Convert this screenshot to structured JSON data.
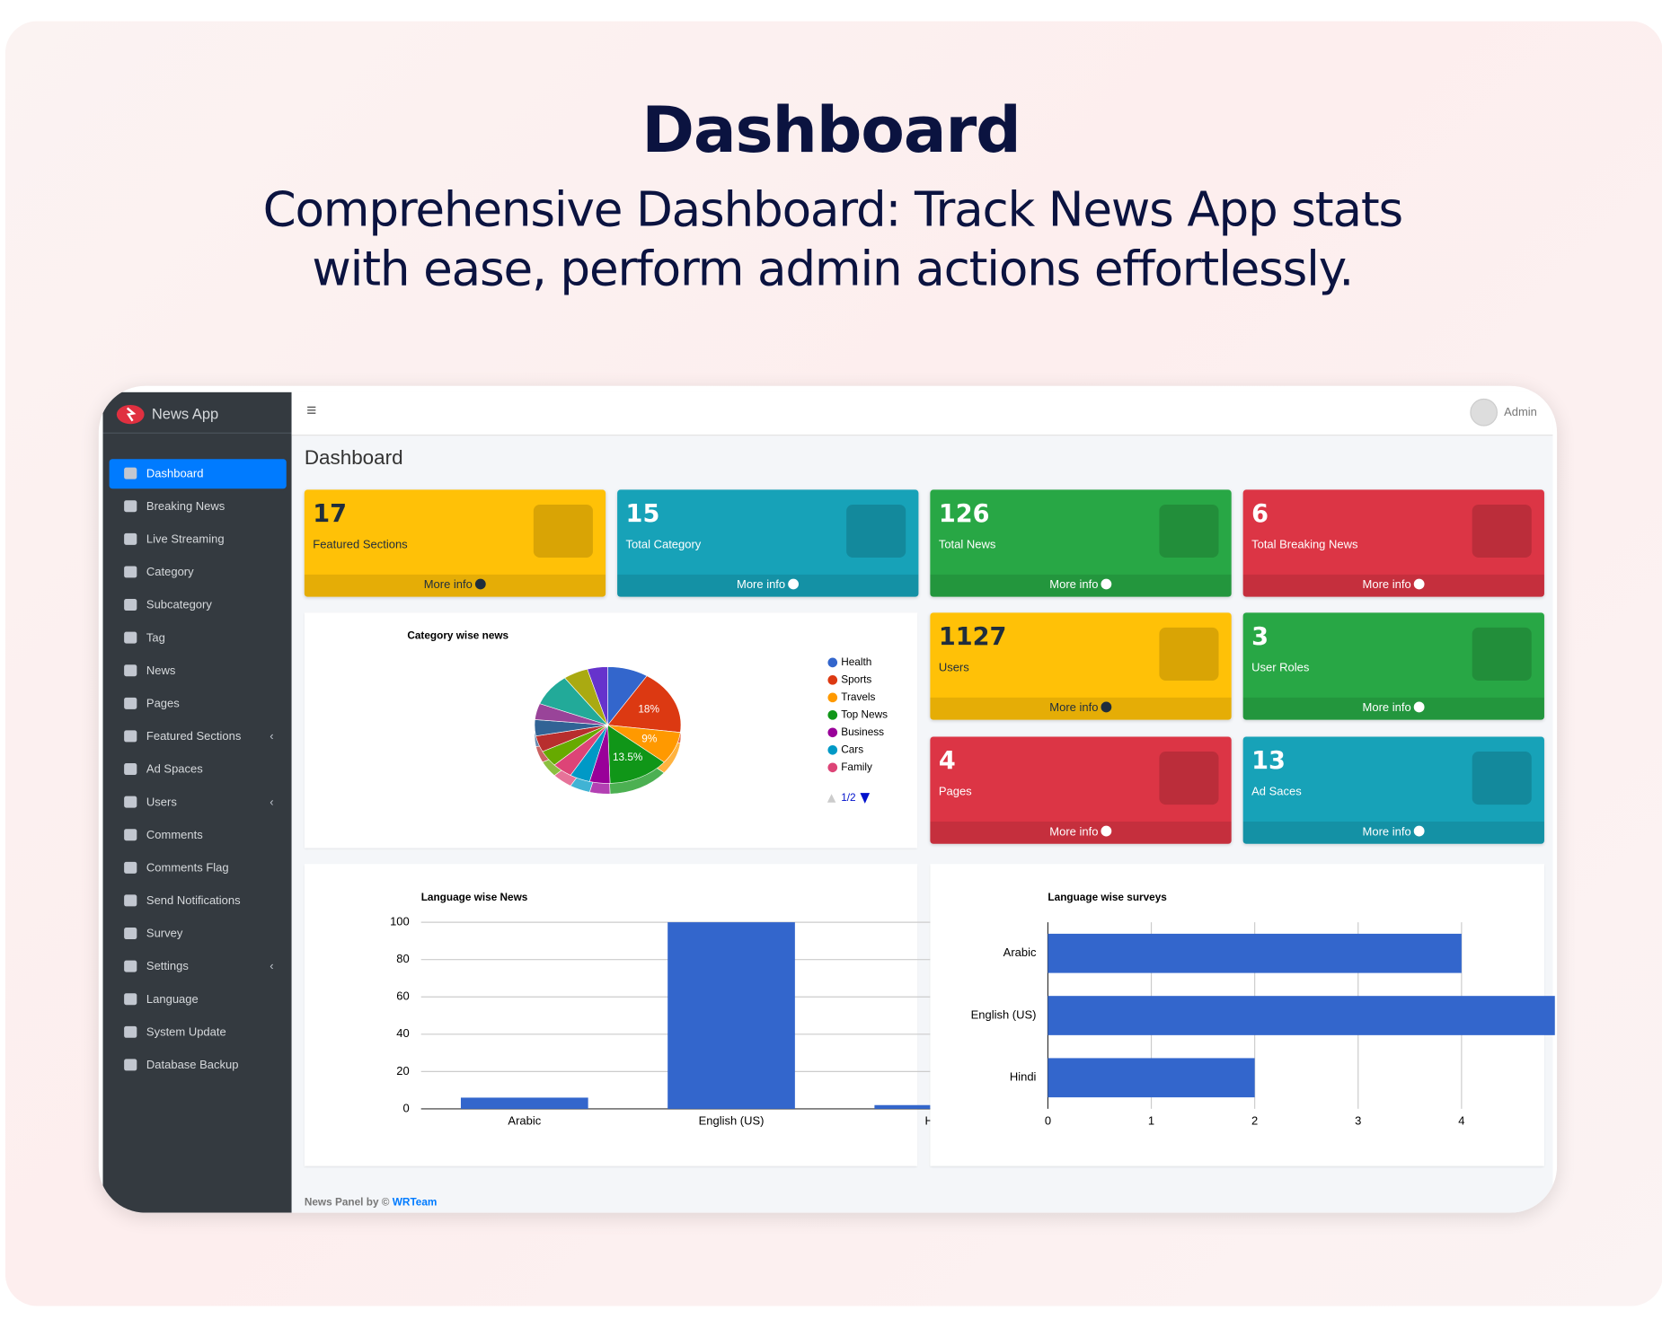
{
  "header": {
    "title": "Dashboard",
    "subtitle": "Comprehensive Dashboard: Track News App stats with ease, perform admin actions effortlessly."
  },
  "app": {
    "brand": "News App",
    "user": "Admin",
    "page_title": "Dashboard",
    "footer_text": "News Panel by ©",
    "footer_link": "WRTeam",
    "sidebar": [
      {
        "label": "Dashboard",
        "active": true
      },
      {
        "label": "Breaking News"
      },
      {
        "label": "Live Streaming"
      },
      {
        "label": "Category"
      },
      {
        "label": "Subcategory"
      },
      {
        "label": "Tag"
      },
      {
        "label": "News"
      },
      {
        "label": "Pages"
      },
      {
        "label": "Featured Sections",
        "expandable": true
      },
      {
        "label": "Ad Spaces"
      },
      {
        "label": "Users",
        "expandable": true
      },
      {
        "label": "Comments"
      },
      {
        "label": "Comments Flag"
      },
      {
        "label": "Send Notifications"
      },
      {
        "label": "Survey"
      },
      {
        "label": "Settings",
        "expandable": true
      },
      {
        "label": "Language"
      },
      {
        "label": "System Update"
      },
      {
        "label": "Database Backup"
      }
    ],
    "cards": [
      {
        "value": 17,
        "label": "Featured Sections",
        "link": "More info",
        "color": "#ffc107"
      },
      {
        "value": 15,
        "label": "Total Category",
        "link": "More info",
        "color": "#17a2b8"
      },
      {
        "value": 126,
        "label": "Total News",
        "link": "More info",
        "color": "#28a745"
      },
      {
        "value": 6,
        "label": "Total Breaking News",
        "link": "More info",
        "color": "#dc3545"
      },
      {
        "value": 1127,
        "label": "Users",
        "link": "More info",
        "color": "#ffc107"
      },
      {
        "value": 3,
        "label": "User Roles",
        "link": "More info",
        "color": "#28a745"
      },
      {
        "value": 4,
        "label": "Pages",
        "link": "More info",
        "color": "#dc3545"
      },
      {
        "value": 13,
        "label": "Ad Saces",
        "link": "More info",
        "color": "#17a2b8"
      }
    ]
  },
  "charts": [
    {
      "type": "pie",
      "title": "Category wise news",
      "categories": [
        "Health",
        "Sports",
        "Travels",
        "Top News",
        "Business",
        "Cars",
        "Family",
        null,
        null,
        null,
        null,
        null,
        null,
        null
      ],
      "values": [
        9,
        18,
        9,
        13.5,
        4.5,
        4.5,
        4.5,
        4.5,
        4.5,
        4.5,
        4.5,
        9,
        5.5,
        4.5
      ],
      "value_labels": [
        null,
        "18%",
        "9%",
        "13.5%",
        null,
        null,
        null,
        null,
        null,
        null,
        null,
        null,
        null,
        null
      ],
      "colors": [
        "#3366cc",
        "#dc3912",
        "#ff9900",
        "#109618",
        "#990099",
        "#0099c6",
        "#dd4477",
        "#66aa00",
        "#b82e2e",
        "#316395",
        "#994499",
        "#22aa99",
        "#aaaa11",
        "#6633cc"
      ],
      "legend_page": "1/2"
    },
    {
      "type": "bar",
      "title": "Language wise News",
      "categories": [
        "Arabic",
        "English (US)",
        "Hindi"
      ],
      "values": [
        6,
        100,
        2
      ],
      "color": "#3366cc",
      "ylim": [
        0,
        100
      ],
      "yticks": [
        0,
        20,
        40,
        60,
        80,
        100
      ],
      "grid": true
    },
    {
      "type": "hbar",
      "title": "Language wise surveys",
      "categories": [
        "Arabic",
        "English (US)",
        "Hindi"
      ],
      "values": [
        4,
        5,
        2
      ],
      "color": "#3366cc",
      "xlim": [
        0,
        5
      ],
      "xticks": [
        0,
        1,
        2,
        3,
        4
      ],
      "grid": true
    }
  ]
}
